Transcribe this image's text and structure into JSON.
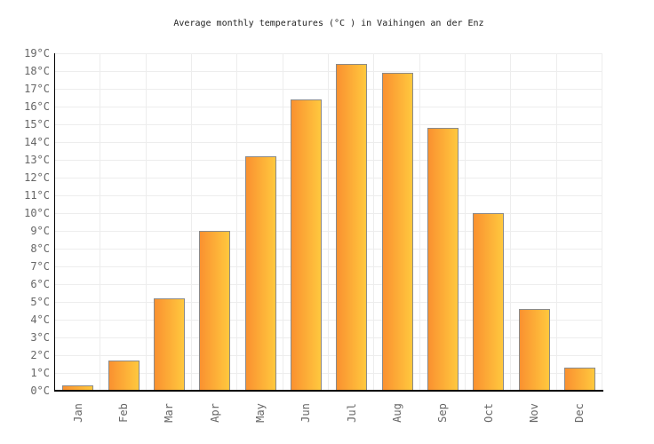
{
  "chart_data": {
    "type": "bar",
    "title": "Average monthly temperatures (°C ) in Vaihingen an der Enz",
    "categories": [
      "Jan",
      "Feb",
      "Mar",
      "Apr",
      "May",
      "Jun",
      "Jul",
      "Aug",
      "Sep",
      "Oct",
      "Nov",
      "Dec"
    ],
    "values": [
      0.3,
      1.7,
      5.2,
      9.0,
      13.2,
      16.4,
      18.4,
      17.9,
      14.8,
      10.0,
      4.6,
      1.3
    ],
    "xlabel": "",
    "ylabel": "",
    "ylim": [
      0,
      19
    ],
    "ytick_step": 1,
    "ytick_suffix": "°C",
    "grid": true,
    "legend": false,
    "colors": {
      "bar_gradient_left": "#fa9130",
      "bar_gradient_right": "#ffc83e",
      "bar_border": "#8a8a8a",
      "grid": "#ededed",
      "axis": "#000000",
      "tick_label": "#666666",
      "title": "#222222"
    }
  }
}
